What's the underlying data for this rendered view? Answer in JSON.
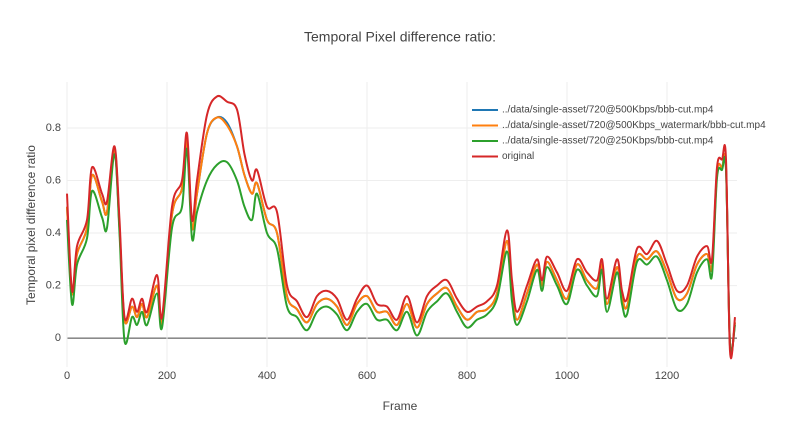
{
  "chart_data": {
    "type": "line",
    "title": "Temporal Pixel difference ratio:",
    "x_label": "Frame",
    "y_label": "Temporal pixel difference ratio",
    "xlim": [
      0,
      1340
    ],
    "ylim": [
      -0.11,
      0.975
    ],
    "xticks": [
      0,
      200,
      400,
      600,
      800,
      1000,
      1200
    ],
    "yticks": [
      0,
      0.2,
      0.4,
      0.6,
      0.8
    ],
    "grid": true,
    "legend": "top-right",
    "x": [
      0,
      10,
      20,
      40,
      50,
      70,
      80,
      95,
      105,
      115,
      130,
      140,
      150,
      160,
      180,
      190,
      210,
      230,
      240,
      250,
      260,
      280,
      300,
      320,
      340,
      355,
      370,
      380,
      400,
      420,
      440,
      460,
      480,
      500,
      520,
      540,
      560,
      580,
      600,
      620,
      640,
      660,
      680,
      700,
      720,
      740,
      760,
      780,
      800,
      820,
      840,
      860,
      880,
      890,
      900,
      920,
      940,
      950,
      960,
      980,
      1000,
      1020,
      1040,
      1060,
      1070,
      1080,
      1100,
      1110,
      1120,
      1140,
      1160,
      1180,
      1200,
      1220,
      1240,
      1260,
      1280,
      1290,
      1300,
      1310,
      1318,
      1326,
      1336
    ],
    "series": [
      {
        "name": "../data/single-asset/720@500Kbps/bbb-cut.mp4",
        "color": "#1f77b4",
        "values": [
          0.5,
          0.17,
          0.32,
          0.42,
          0.62,
          0.52,
          0.48,
          0.72,
          0.42,
          0.07,
          0.12,
          0.08,
          0.13,
          0.08,
          0.2,
          0.06,
          0.47,
          0.57,
          0.75,
          0.42,
          0.55,
          0.78,
          0.84,
          0.82,
          0.73,
          0.62,
          0.55,
          0.59,
          0.45,
          0.4,
          0.16,
          0.11,
          0.06,
          0.13,
          0.15,
          0.12,
          0.05,
          0.13,
          0.16,
          0.1,
          0.1,
          0.05,
          0.13,
          0.04,
          0.13,
          0.17,
          0.19,
          0.12,
          0.07,
          0.1,
          0.11,
          0.17,
          0.37,
          0.18,
          0.07,
          0.17,
          0.28,
          0.2,
          0.29,
          0.22,
          0.15,
          0.28,
          0.22,
          0.19,
          0.28,
          0.13,
          0.27,
          0.16,
          0.12,
          0.31,
          0.3,
          0.33,
          0.25,
          0.15,
          0.17,
          0.28,
          0.32,
          0.27,
          0.63,
          0.65,
          0.65,
          -0.03,
          0.06
        ]
      },
      {
        "name": "../data/single-asset/720@500Kbps_watermark/bbb-cut.mp4",
        "color": "#ff7f0e",
        "values": [
          0.5,
          0.17,
          0.32,
          0.42,
          0.62,
          0.52,
          0.48,
          0.72,
          0.42,
          0.07,
          0.12,
          0.08,
          0.13,
          0.08,
          0.2,
          0.06,
          0.47,
          0.57,
          0.75,
          0.42,
          0.55,
          0.78,
          0.84,
          0.81,
          0.73,
          0.62,
          0.55,
          0.59,
          0.45,
          0.4,
          0.16,
          0.11,
          0.06,
          0.13,
          0.15,
          0.12,
          0.05,
          0.13,
          0.16,
          0.1,
          0.1,
          0.05,
          0.13,
          0.04,
          0.13,
          0.17,
          0.19,
          0.12,
          0.07,
          0.1,
          0.11,
          0.17,
          0.37,
          0.18,
          0.07,
          0.17,
          0.28,
          0.2,
          0.29,
          0.22,
          0.15,
          0.28,
          0.22,
          0.19,
          0.28,
          0.13,
          0.27,
          0.16,
          0.12,
          0.31,
          0.3,
          0.33,
          0.25,
          0.15,
          0.17,
          0.28,
          0.32,
          0.27,
          0.63,
          0.65,
          0.65,
          -0.03,
          0.06
        ]
      },
      {
        "name": "../data/single-asset/720@250Kbps/bbb-cut.mp4",
        "color": "#2ca02c",
        "values": [
          0.45,
          0.13,
          0.28,
          0.38,
          0.56,
          0.46,
          0.42,
          0.7,
          0.4,
          -0.01,
          0.08,
          0.05,
          0.1,
          0.05,
          0.17,
          0.04,
          0.42,
          0.5,
          0.72,
          0.38,
          0.48,
          0.6,
          0.66,
          0.67,
          0.6,
          0.5,
          0.45,
          0.55,
          0.4,
          0.34,
          0.12,
          0.08,
          0.03,
          0.1,
          0.12,
          0.09,
          0.03,
          0.1,
          0.13,
          0.07,
          0.07,
          0.03,
          0.1,
          0.01,
          0.1,
          0.14,
          0.17,
          0.1,
          0.04,
          0.07,
          0.09,
          0.15,
          0.33,
          0.14,
          0.05,
          0.14,
          0.26,
          0.18,
          0.27,
          0.2,
          0.13,
          0.26,
          0.2,
          0.16,
          0.26,
          0.1,
          0.25,
          0.13,
          0.09,
          0.29,
          0.28,
          0.31,
          0.22,
          0.11,
          0.13,
          0.25,
          0.3,
          0.24,
          0.61,
          0.64,
          0.64,
          -0.02,
          0.05
        ]
      },
      {
        "name": "original",
        "color": "#d62728",
        "values": [
          0.55,
          0.18,
          0.35,
          0.45,
          0.65,
          0.55,
          0.52,
          0.73,
          0.45,
          0.08,
          0.15,
          0.1,
          0.15,
          0.1,
          0.24,
          0.08,
          0.5,
          0.6,
          0.78,
          0.45,
          0.6,
          0.85,
          0.92,
          0.9,
          0.87,
          0.7,
          0.6,
          0.64,
          0.5,
          0.48,
          0.2,
          0.14,
          0.08,
          0.16,
          0.18,
          0.15,
          0.07,
          0.15,
          0.2,
          0.13,
          0.12,
          0.07,
          0.16,
          0.06,
          0.16,
          0.2,
          0.22,
          0.15,
          0.1,
          0.12,
          0.14,
          0.2,
          0.41,
          0.22,
          0.1,
          0.2,
          0.3,
          0.22,
          0.31,
          0.25,
          0.18,
          0.3,
          0.25,
          0.22,
          0.3,
          0.15,
          0.3,
          0.18,
          0.15,
          0.34,
          0.32,
          0.37,
          0.28,
          0.18,
          0.2,
          0.31,
          0.35,
          0.3,
          0.65,
          0.68,
          0.68,
          -0.05,
          0.08
        ]
      }
    ]
  }
}
